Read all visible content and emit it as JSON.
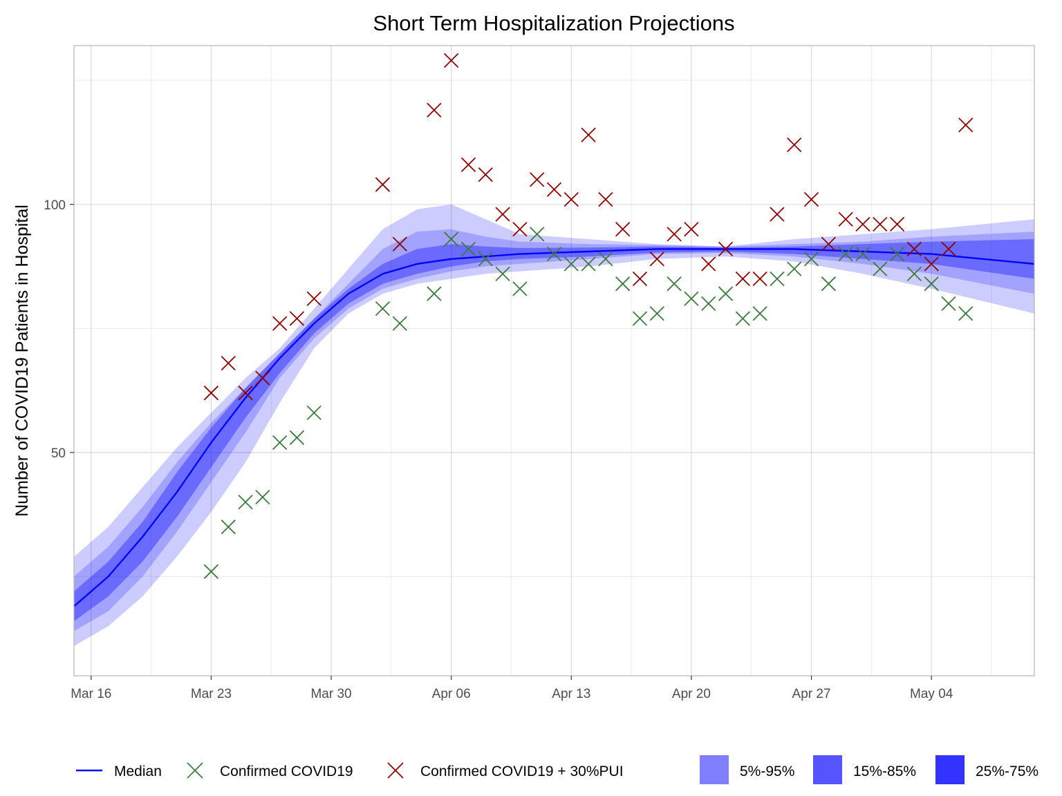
{
  "chart_data": {
    "type": "line",
    "title": "Short Term Hospitalization Projections",
    "xlabel": "",
    "ylabel": "Number of COVID19 Patients in Hospital",
    "x_range": [
      "2020-03-15",
      "2020-05-10"
    ],
    "ylim": [
      5,
      132
    ],
    "x_ticks": [
      {
        "date": "2020-03-16",
        "label": "Mar 16"
      },
      {
        "date": "2020-03-23",
        "label": "Mar 23"
      },
      {
        "date": "2020-03-30",
        "label": "Mar 30"
      },
      {
        "date": "2020-04-06",
        "label": "Apr 06"
      },
      {
        "date": "2020-04-13",
        "label": "Apr 13"
      },
      {
        "date": "2020-04-20",
        "label": "Apr 20"
      },
      {
        "date": "2020-04-27",
        "label": "Apr 27"
      },
      {
        "date": "2020-05-04",
        "label": "May 04"
      }
    ],
    "y_ticks": [
      {
        "value": 50,
        "label": "50"
      },
      {
        "value": 100,
        "label": "100"
      }
    ],
    "grid": true,
    "legend_position": "bottom",
    "colors": {
      "median": "#0000ff",
      "band_5_95": "#8080ff",
      "band_15_85": "#5555ff",
      "band_25_75": "#3333ff",
      "confirmed": "#3d7a3d",
      "confirmed_pui": "#8b0000"
    },
    "median": {
      "name": "Median",
      "x": [
        "2020-03-15",
        "2020-03-17",
        "2020-03-19",
        "2020-03-21",
        "2020-03-23",
        "2020-03-25",
        "2020-03-27",
        "2020-03-29",
        "2020-03-31",
        "2020-04-02",
        "2020-04-04",
        "2020-04-06",
        "2020-04-10",
        "2020-04-14",
        "2020-04-18",
        "2020-04-22",
        "2020-04-26",
        "2020-04-30",
        "2020-05-04",
        "2020-05-10"
      ],
      "y": [
        19,
        25,
        33,
        42,
        52,
        61,
        69,
        76,
        82,
        86,
        88,
        89,
        90,
        90.5,
        91,
        91,
        91,
        90.5,
        90,
        88
      ]
    },
    "bands": [
      {
        "name": "5%-95%",
        "x": [
          "2020-03-15",
          "2020-03-17",
          "2020-03-19",
          "2020-03-21",
          "2020-03-23",
          "2020-03-25",
          "2020-03-27",
          "2020-03-29",
          "2020-03-31",
          "2020-04-02",
          "2020-04-04",
          "2020-04-06",
          "2020-04-08",
          "2020-04-10",
          "2020-04-14",
          "2020-04-18",
          "2020-04-22",
          "2020-04-26",
          "2020-04-30",
          "2020-05-04",
          "2020-05-10"
        ],
        "lower": [
          11,
          15,
          21,
          29,
          38,
          48,
          60,
          71,
          78,
          82,
          84,
          85,
          86,
          86.5,
          87.5,
          89,
          89.5,
          88.5,
          86,
          83,
          78
        ],
        "upper": [
          29,
          35,
          43,
          51,
          58,
          65,
          71,
          79,
          87,
          95,
          99,
          100,
          97,
          94,
          93,
          92,
          91.5,
          93,
          94,
          95,
          97
        ]
      },
      {
        "name": "15%-85%",
        "x": [
          "2020-03-15",
          "2020-03-17",
          "2020-03-19",
          "2020-03-21",
          "2020-03-23",
          "2020-03-25",
          "2020-03-27",
          "2020-03-29",
          "2020-03-31",
          "2020-04-02",
          "2020-04-04",
          "2020-04-06",
          "2020-04-08",
          "2020-04-10",
          "2020-04-14",
          "2020-04-18",
          "2020-04-22",
          "2020-04-26",
          "2020-04-30",
          "2020-05-04",
          "2020-05-10"
        ],
        "lower": [
          14,
          18,
          25,
          34,
          44,
          54,
          65,
          73,
          79,
          83,
          85,
          86.5,
          87.5,
          88,
          89,
          90,
          90.2,
          89.5,
          88,
          86,
          82
        ],
        "upper": [
          25,
          31,
          39,
          48,
          56,
          63,
          70,
          77,
          84,
          91,
          94.5,
          95,
          93.5,
          92.5,
          92,
          91.8,
          91.5,
          92,
          92.5,
          93.5,
          94.5
        ]
      },
      {
        "name": "25%-75%",
        "x": [
          "2020-03-15",
          "2020-03-17",
          "2020-03-19",
          "2020-03-21",
          "2020-03-23",
          "2020-03-25",
          "2020-03-27",
          "2020-03-29",
          "2020-03-31",
          "2020-04-02",
          "2020-04-04",
          "2020-04-06",
          "2020-04-08",
          "2020-04-10",
          "2020-04-14",
          "2020-04-18",
          "2020-04-22",
          "2020-04-26",
          "2020-04-30",
          "2020-05-04",
          "2020-05-10"
        ],
        "lower": [
          16,
          21,
          28,
          37,
          47,
          57,
          66,
          74,
          80,
          84,
          86,
          87.5,
          88.5,
          89,
          89.5,
          90.3,
          90.5,
          90,
          89,
          88,
          85
        ],
        "upper": [
          22,
          28,
          36,
          46,
          55,
          63,
          70,
          77,
          83,
          88,
          91,
          92,
          91.5,
          91.2,
          91.3,
          91.5,
          91.3,
          91.5,
          92,
          92.5,
          93
        ]
      }
    ],
    "series": [
      {
        "name": "Confirmed COVID19",
        "marker": "x",
        "x": [
          "2020-03-23",
          "2020-03-24",
          "2020-03-25",
          "2020-03-26",
          "2020-03-27",
          "2020-03-28",
          "2020-03-29",
          "2020-04-02",
          "2020-04-03",
          "2020-04-05",
          "2020-04-06",
          "2020-04-07",
          "2020-04-08",
          "2020-04-09",
          "2020-04-10",
          "2020-04-11",
          "2020-04-12",
          "2020-04-13",
          "2020-04-14",
          "2020-04-15",
          "2020-04-16",
          "2020-04-17",
          "2020-04-18",
          "2020-04-19",
          "2020-04-20",
          "2020-04-21",
          "2020-04-22",
          "2020-04-23",
          "2020-04-24",
          "2020-04-25",
          "2020-04-26",
          "2020-04-27",
          "2020-04-28",
          "2020-04-29",
          "2020-04-30",
          "2020-05-01",
          "2020-05-02",
          "2020-05-03",
          "2020-05-04",
          "2020-05-05",
          "2020-05-06"
        ],
        "y": [
          26,
          35,
          40,
          41,
          52,
          53,
          58,
          79,
          76,
          82,
          93,
          91,
          89,
          86,
          83,
          94,
          90,
          88,
          88,
          89,
          84,
          77,
          78,
          84,
          81,
          80,
          82,
          77,
          78,
          85,
          87,
          89,
          84,
          90,
          90,
          87,
          90,
          86,
          84,
          80,
          78
        ]
      },
      {
        "name": "Confirmed COVID19 + 30%PUI",
        "marker": "x",
        "x": [
          "2020-03-23",
          "2020-03-24",
          "2020-03-25",
          "2020-03-26",
          "2020-03-27",
          "2020-03-28",
          "2020-03-29",
          "2020-04-02",
          "2020-04-03",
          "2020-04-05",
          "2020-04-06",
          "2020-04-07",
          "2020-04-08",
          "2020-04-09",
          "2020-04-10",
          "2020-04-11",
          "2020-04-12",
          "2020-04-13",
          "2020-04-14",
          "2020-04-15",
          "2020-04-16",
          "2020-04-17",
          "2020-04-18",
          "2020-04-19",
          "2020-04-20",
          "2020-04-21",
          "2020-04-22",
          "2020-04-23",
          "2020-04-24",
          "2020-04-25",
          "2020-04-26",
          "2020-04-27",
          "2020-04-28",
          "2020-04-29",
          "2020-04-30",
          "2020-05-01",
          "2020-05-02",
          "2020-05-03",
          "2020-05-04",
          "2020-05-05",
          "2020-05-06"
        ],
        "y": [
          62,
          68,
          62,
          65,
          76,
          77,
          81,
          104,
          92,
          119,
          129,
          108,
          106,
          98,
          95,
          105,
          103,
          101,
          114,
          101,
          95,
          85,
          89,
          94,
          95,
          88,
          91,
          85,
          85,
          98,
          112,
          101,
          92,
          97,
          96,
          96,
          96,
          91,
          88,
          91,
          116
        ]
      }
    ]
  },
  "legend": {
    "median_label": "Median",
    "confirmed_label": "Confirmed COVID19",
    "confirmed_pui_label": "Confirmed COVID19 + 30%PUI",
    "band_5_95_label": "5%-95%",
    "band_15_85_label": "15%-85%",
    "band_25_75_label": "25%-75%"
  }
}
